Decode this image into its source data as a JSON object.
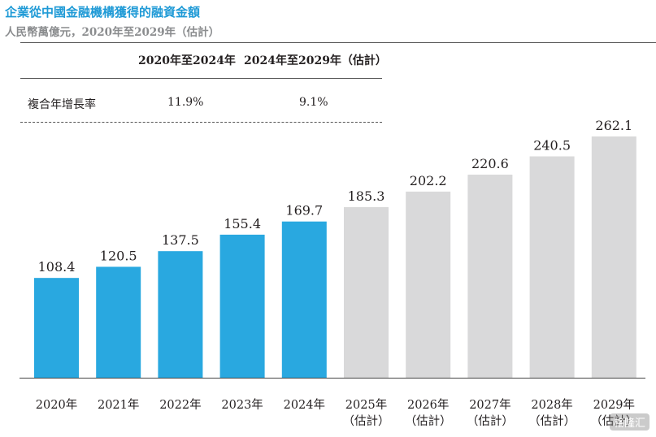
{
  "title": "企業從中國金融機構獲得的融資金額",
  "subtitle": "人民幣萬億元，2020年至2029年（估計）",
  "table": {
    "headers": [
      "2020年至2024年",
      "2024年至2029年（估計）"
    ],
    "row_label": "複合年增長率",
    "values": [
      "11.9%",
      "9.1%"
    ]
  },
  "watermark": "格隆汇",
  "colors": {
    "actual": "#29a8e0",
    "forecast": "#d9d9da",
    "title": "#1f9ad6"
  },
  "chart_data": {
    "type": "bar",
    "categories": [
      "2020年",
      "2021年",
      "2022年",
      "2023年",
      "2024年",
      "2025年",
      "2026年",
      "2027年",
      "2028年",
      "2029年"
    ],
    "category_notes": [
      "",
      "",
      "",
      "",
      "",
      "（估計）",
      "（估計）",
      "（估計）",
      "（估計）",
      "（估計）"
    ],
    "values": [
      108.4,
      120.5,
      137.5,
      155.4,
      169.7,
      185.3,
      202.2,
      220.6,
      240.5,
      262.1
    ],
    "data_labels": [
      "108.4",
      "120.5",
      "137.5",
      "155.4",
      "169.7",
      "185.3",
      "202.2",
      "220.6",
      "240.5",
      "262.1"
    ],
    "forecast_from_index": 5,
    "ylim": [
      0,
      262.1
    ],
    "title": "企業從中國金融機構獲得的融資金額",
    "xlabel": "",
    "ylabel": "",
    "grid": false
  }
}
